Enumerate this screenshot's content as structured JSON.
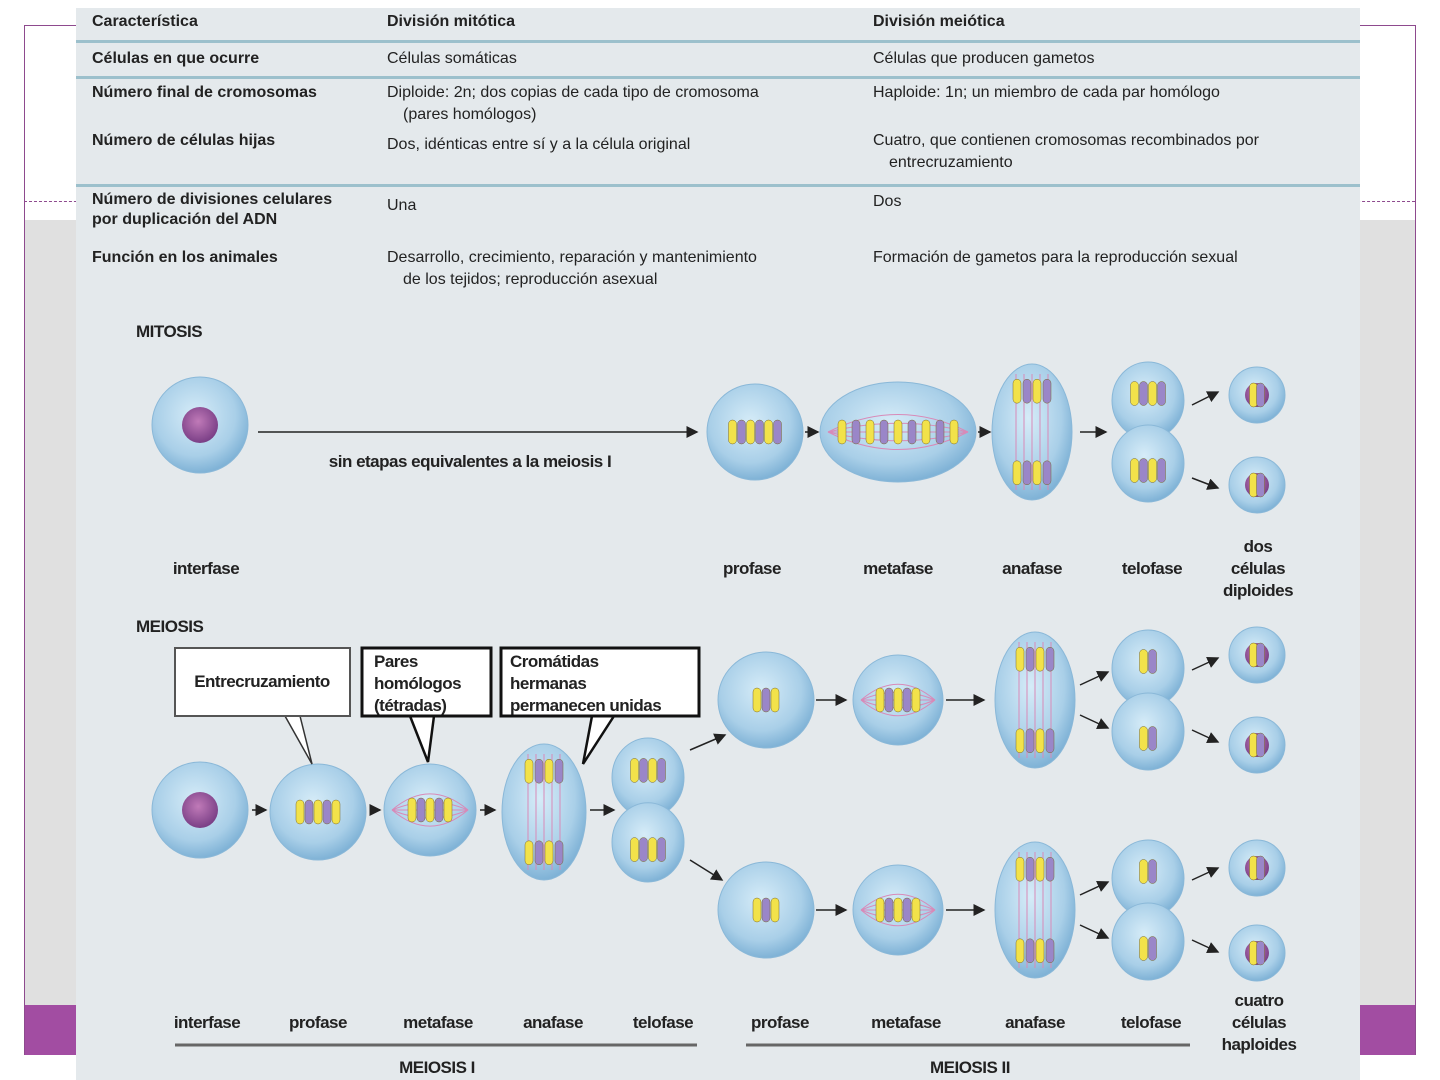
{
  "table": {
    "headers": [
      "Característica",
      "División mitótica",
      "División meiótica"
    ],
    "rows": [
      {
        "feature": "Células en que ocurre",
        "mitosis": [
          "Células somáticas"
        ],
        "meiosis": [
          "Células que producen gametos"
        ]
      },
      {
        "feature": "Número final de cromosomas",
        "mitosis": [
          "Diploide: 2n; dos copias de cada tipo de cromosoma",
          "(pares homólogos)"
        ],
        "meiosis": [
          "Haploide: 1n; un miembro de cada par homólogo"
        ]
      },
      {
        "feature": "Número de células hijas",
        "mitosis": [
          "Dos, idénticas entre sí y a la célula original"
        ],
        "meiosis": [
          "Cuatro, que contienen cromosomas recombinados por",
          "entrecruzamiento"
        ]
      },
      {
        "feature": "Número de divisiones celulares por duplicación del ADN",
        "mitosis": [
          "Una"
        ],
        "meiosis": [
          "Dos"
        ]
      },
      {
        "feature": "Función en los animales",
        "mitosis": [
          "Desarrollo, crecimiento, reparación y mantenimiento",
          "de los tejidos; reproducción asexual"
        ],
        "meiosis": [
          "Formación de gametos para la reproducción sexual"
        ]
      }
    ]
  },
  "mitosis": {
    "title": "MITOSIS",
    "skip_label": "sin etapas equivalentes a la meiosis I",
    "stages": [
      "interfase",
      "profase",
      "metafase",
      "anafase",
      "telofase"
    ],
    "result": [
      "dos",
      "células",
      "diploides"
    ]
  },
  "meiosis": {
    "title": "MEIOSIS",
    "callouts": {
      "crossing_over": [
        "Entrecruzamiento"
      ],
      "tetrads": [
        "Pares",
        "homólogos",
        "(tétradas)"
      ],
      "sister_chromatids": [
        "Cromátidas",
        "hermanas",
        "permanecen unidas"
      ]
    },
    "meiosis1_stages": [
      "interfase",
      "profase",
      "metafase",
      "anafase",
      "telofase"
    ],
    "meiosis2_stages": [
      "profase",
      "metafase",
      "anafase",
      "telofase"
    ],
    "result": [
      "cuatro",
      "células",
      "haploides"
    ],
    "meiosis1_label": "MEIOSIS I",
    "meiosis2_label": "MEIOSIS II"
  },
  "colors": {
    "accent": "#a24da2",
    "cell": "#a9cfe8",
    "chromosome_yellow": "#f2e24a",
    "chromosome_purple": "#9a86c8"
  }
}
